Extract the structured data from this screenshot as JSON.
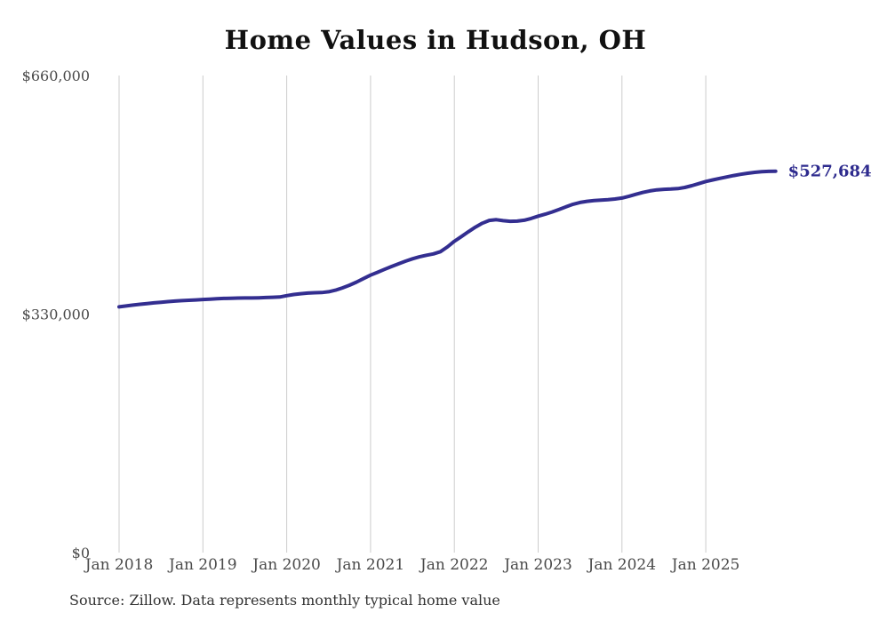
{
  "chart_data": {
    "type": "line",
    "title": "Home Values in Hudson, OH",
    "source": "Source: Zillow. Data represents monthly typical home value",
    "end_label": "$527,684",
    "final_value": 527684,
    "colors": {
      "line": "#332e90",
      "end_label": "#2e2b8e",
      "grid": "#cccccc",
      "axis_label": "#4a4a4a",
      "title": "#111111"
    },
    "ylim": [
      0,
      660000
    ],
    "grid": "vertical-only",
    "legend": "none",
    "x_tick_labels": [
      "Jan 2018",
      "Jan 2019",
      "Jan 2020",
      "Jan 2021",
      "Jan 2022",
      "Jan 2023",
      "Jan 2024",
      "Jan 2025"
    ],
    "y_ticks": [
      {
        "label": "$660,000",
        "value": 660000
      },
      {
        "label": "$330,000",
        "value": 330000
      },
      {
        "label": "$0",
        "value": 0
      }
    ],
    "x_start_month": "Jan 2018",
    "x_end_month": "Nov 2025",
    "frequency": "monthly",
    "series": [
      {
        "name": "Typical home value",
        "values": [
          340000,
          341200,
          342400,
          343500,
          344500,
          345500,
          346400,
          347200,
          347900,
          348500,
          349000,
          349600,
          350100,
          350700,
          351200,
          351600,
          351900,
          352100,
          352200,
          352300,
          352500,
          352800,
          353200,
          353600,
          355500,
          357000,
          358200,
          359000,
          359500,
          359800,
          360800,
          363000,
          366200,
          370000,
          374300,
          379000,
          383800,
          387800,
          391800,
          395700,
          399500,
          403100,
          406400,
          409200,
          411400,
          413200,
          416300,
          422800,
          430600,
          437200,
          443800,
          450200,
          455600,
          459500,
          460500,
          459200,
          458300,
          458500,
          459800,
          462300,
          465500,
          468200,
          471200,
          474600,
          478400,
          481900,
          484400,
          486000,
          487000,
          487600,
          488200,
          489200,
          490500,
          493000,
          495700,
          498300,
          500400,
          501800,
          502500,
          502900,
          503600,
          505200,
          507600,
          510400,
          513400,
          515600,
          517700,
          519700,
          521600,
          523300,
          524800,
          526000,
          526900,
          527400,
          527684
        ]
      }
    ]
  }
}
